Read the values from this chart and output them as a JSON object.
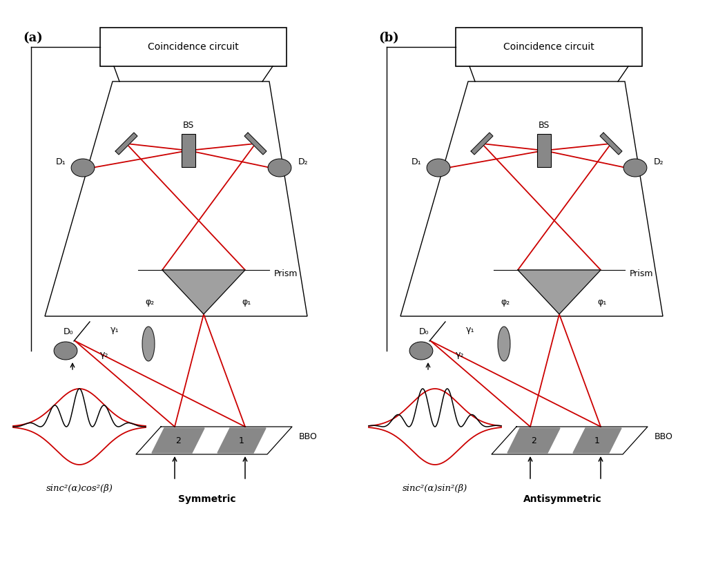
{
  "bg_color": "#ffffff",
  "line_color": "#000000",
  "red_color": "#cc0000",
  "gray_color": "#888888",
  "dark_gray": "#555555",
  "panel_a_label": "(a)",
  "panel_b_label": "(b)",
  "coincidence_label": "Coincidence circuit",
  "bs_label": "BS",
  "d0_label": "D₀",
  "d1_label": "D₁",
  "d2_label": "D₂",
  "prism_label": "Prism",
  "bbo_label": "BBO",
  "phi1_label": "φ₁",
  "phi2_label": "φ₂",
  "gamma1_label": "γ₁",
  "gamma2_label": "γ₂",
  "symmetric_label": "Symmetric",
  "antisymmetric_label": "Antisymmetric",
  "formula_a": "sinc²(α)cos²(β)",
  "formula_b": "sinc²(α)sin²(β)"
}
